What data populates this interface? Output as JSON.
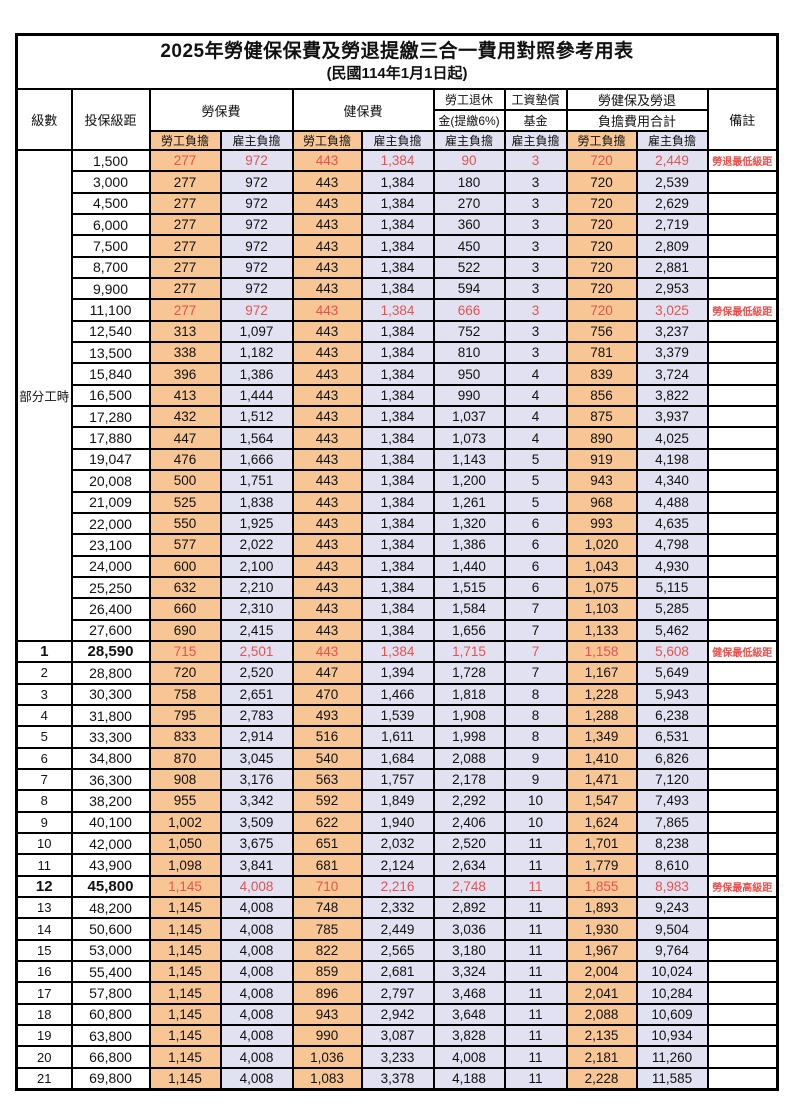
{
  "title": "2025年勞健保保費及勞退提繳三合一費用對照參考用表",
  "subtitle": "(民國114年1月1日起)",
  "colors": {
    "employee_share_bg": "#F8C694",
    "employer_share_bg": "#E1E1F1",
    "highlight_red": "#E8524E"
  },
  "header": {
    "level": "級數",
    "bracket": "投保級距",
    "labor_insurance": "勞保費",
    "health_insurance": "健保費",
    "pension_line1": "勞工退休",
    "pension_line2": "金(提繳6%)",
    "wage_fund_line1": "工資墊償",
    "wage_fund_line2": "基金",
    "total_line1": "勞健保及勞退",
    "total_line2": "負擔費用合計",
    "employee_share": "勞工負擔",
    "employer_share": "雇主負擔",
    "remark": "備註"
  },
  "part_time_label": "部分工時",
  "part_time_rowspan": 23,
  "rows": [
    {
      "level": "",
      "bracket": "1,500",
      "labor_emp": "277",
      "labor_er": "972",
      "health_emp": "443",
      "health_er": "1,384",
      "pension_er": "90",
      "fund_er": "3",
      "total_emp": "720",
      "total_er": "2,449",
      "remark": "勞退最低級距",
      "highlight": true
    },
    {
      "level": "",
      "bracket": "3,000",
      "labor_emp": "277",
      "labor_er": "972",
      "health_emp": "443",
      "health_er": "1,384",
      "pension_er": "180",
      "fund_er": "3",
      "total_emp": "720",
      "total_er": "2,539",
      "remark": ""
    },
    {
      "level": "",
      "bracket": "4,500",
      "labor_emp": "277",
      "labor_er": "972",
      "health_emp": "443",
      "health_er": "1,384",
      "pension_er": "270",
      "fund_er": "3",
      "total_emp": "720",
      "total_er": "2,629",
      "remark": ""
    },
    {
      "level": "",
      "bracket": "6,000",
      "labor_emp": "277",
      "labor_er": "972",
      "health_emp": "443",
      "health_er": "1,384",
      "pension_er": "360",
      "fund_er": "3",
      "total_emp": "720",
      "total_er": "2,719",
      "remark": ""
    },
    {
      "level": "",
      "bracket": "7,500",
      "labor_emp": "277",
      "labor_er": "972",
      "health_emp": "443",
      "health_er": "1,384",
      "pension_er": "450",
      "fund_er": "3",
      "total_emp": "720",
      "total_er": "2,809",
      "remark": ""
    },
    {
      "level": "",
      "bracket": "8,700",
      "labor_emp": "277",
      "labor_er": "972",
      "health_emp": "443",
      "health_er": "1,384",
      "pension_er": "522",
      "fund_er": "3",
      "total_emp": "720",
      "total_er": "2,881",
      "remark": ""
    },
    {
      "level": "",
      "bracket": "9,900",
      "labor_emp": "277",
      "labor_er": "972",
      "health_emp": "443",
      "health_er": "1,384",
      "pension_er": "594",
      "fund_er": "3",
      "total_emp": "720",
      "total_er": "2,953",
      "remark": ""
    },
    {
      "level": "",
      "bracket": "11,100",
      "labor_emp": "277",
      "labor_er": "972",
      "health_emp": "443",
      "health_er": "1,384",
      "pension_er": "666",
      "fund_er": "3",
      "total_emp": "720",
      "total_er": "3,025",
      "remark": "勞保最低級距",
      "highlight": true
    },
    {
      "level": "",
      "bracket": "12,540",
      "labor_emp": "313",
      "labor_er": "1,097",
      "health_emp": "443",
      "health_er": "1,384",
      "pension_er": "752",
      "fund_er": "3",
      "total_emp": "756",
      "total_er": "3,237",
      "remark": ""
    },
    {
      "level": "",
      "bracket": "13,500",
      "labor_emp": "338",
      "labor_er": "1,182",
      "health_emp": "443",
      "health_er": "1,384",
      "pension_er": "810",
      "fund_er": "3",
      "total_emp": "781",
      "total_er": "3,379",
      "remark": ""
    },
    {
      "level": "",
      "bracket": "15,840",
      "labor_emp": "396",
      "labor_er": "1,386",
      "health_emp": "443",
      "health_er": "1,384",
      "pension_er": "950",
      "fund_er": "4",
      "total_emp": "839",
      "total_er": "3,724",
      "remark": ""
    },
    {
      "level": "",
      "bracket": "16,500",
      "labor_emp": "413",
      "labor_er": "1,444",
      "health_emp": "443",
      "health_er": "1,384",
      "pension_er": "990",
      "fund_er": "4",
      "total_emp": "856",
      "total_er": "3,822",
      "remark": ""
    },
    {
      "level": "",
      "bracket": "17,280",
      "labor_emp": "432",
      "labor_er": "1,512",
      "health_emp": "443",
      "health_er": "1,384",
      "pension_er": "1,037",
      "fund_er": "4",
      "total_emp": "875",
      "total_er": "3,937",
      "remark": ""
    },
    {
      "level": "",
      "bracket": "17,880",
      "labor_emp": "447",
      "labor_er": "1,564",
      "health_emp": "443",
      "health_er": "1,384",
      "pension_er": "1,073",
      "fund_er": "4",
      "total_emp": "890",
      "total_er": "4,025",
      "remark": ""
    },
    {
      "level": "",
      "bracket": "19,047",
      "labor_emp": "476",
      "labor_er": "1,666",
      "health_emp": "443",
      "health_er": "1,384",
      "pension_er": "1,143",
      "fund_er": "5",
      "total_emp": "919",
      "total_er": "4,198",
      "remark": ""
    },
    {
      "level": "",
      "bracket": "20,008",
      "labor_emp": "500",
      "labor_er": "1,751",
      "health_emp": "443",
      "health_er": "1,384",
      "pension_er": "1,200",
      "fund_er": "5",
      "total_emp": "943",
      "total_er": "4,340",
      "remark": ""
    },
    {
      "level": "",
      "bracket": "21,009",
      "labor_emp": "525",
      "labor_er": "1,838",
      "health_emp": "443",
      "health_er": "1,384",
      "pension_er": "1,261",
      "fund_er": "5",
      "total_emp": "968",
      "total_er": "4,488",
      "remark": ""
    },
    {
      "level": "",
      "bracket": "22,000",
      "labor_emp": "550",
      "labor_er": "1,925",
      "health_emp": "443",
      "health_er": "1,384",
      "pension_er": "1,320",
      "fund_er": "6",
      "total_emp": "993",
      "total_er": "4,635",
      "remark": ""
    },
    {
      "level": "",
      "bracket": "23,100",
      "labor_emp": "577",
      "labor_er": "2,022",
      "health_emp": "443",
      "health_er": "1,384",
      "pension_er": "1,386",
      "fund_er": "6",
      "total_emp": "1,020",
      "total_er": "4,798",
      "remark": ""
    },
    {
      "level": "",
      "bracket": "24,000",
      "labor_emp": "600",
      "labor_er": "2,100",
      "health_emp": "443",
      "health_er": "1,384",
      "pension_er": "1,440",
      "fund_er": "6",
      "total_emp": "1,043",
      "total_er": "4,930",
      "remark": ""
    },
    {
      "level": "",
      "bracket": "25,250",
      "labor_emp": "632",
      "labor_er": "2,210",
      "health_emp": "443",
      "health_er": "1,384",
      "pension_er": "1,515",
      "fund_er": "6",
      "total_emp": "1,075",
      "total_er": "5,115",
      "remark": ""
    },
    {
      "level": "",
      "bracket": "26,400",
      "labor_emp": "660",
      "labor_er": "2,310",
      "health_emp": "443",
      "health_er": "1,384",
      "pension_er": "1,584",
      "fund_er": "7",
      "total_emp": "1,103",
      "total_er": "5,285",
      "remark": ""
    },
    {
      "level": "",
      "bracket": "27,600",
      "labor_emp": "690",
      "labor_er": "2,415",
      "health_emp": "443",
      "health_er": "1,384",
      "pension_er": "1,656",
      "fund_er": "7",
      "total_emp": "1,133",
      "total_er": "5,462",
      "remark": ""
    },
    {
      "level": "1",
      "bracket": "28,590",
      "labor_emp": "715",
      "labor_er": "2,501",
      "health_emp": "443",
      "health_er": "1,384",
      "pension_er": "1,715",
      "fund_er": "7",
      "total_emp": "1,158",
      "total_er": "5,608",
      "remark": "健保最低級距",
      "highlight": true,
      "emphasis": true
    },
    {
      "level": "2",
      "bracket": "28,800",
      "labor_emp": "720",
      "labor_er": "2,520",
      "health_emp": "447",
      "health_er": "1,394",
      "pension_er": "1,728",
      "fund_er": "7",
      "total_emp": "1,167",
      "total_er": "5,649",
      "remark": ""
    },
    {
      "level": "3",
      "bracket": "30,300",
      "labor_emp": "758",
      "labor_er": "2,651",
      "health_emp": "470",
      "health_er": "1,466",
      "pension_er": "1,818",
      "fund_er": "8",
      "total_emp": "1,228",
      "total_er": "5,943",
      "remark": ""
    },
    {
      "level": "4",
      "bracket": "31,800",
      "labor_emp": "795",
      "labor_er": "2,783",
      "health_emp": "493",
      "health_er": "1,539",
      "pension_er": "1,908",
      "fund_er": "8",
      "total_emp": "1,288",
      "total_er": "6,238",
      "remark": ""
    },
    {
      "level": "5",
      "bracket": "33,300",
      "labor_emp": "833",
      "labor_er": "2,914",
      "health_emp": "516",
      "health_er": "1,611",
      "pension_er": "1,998",
      "fund_er": "8",
      "total_emp": "1,349",
      "total_er": "6,531",
      "remark": ""
    },
    {
      "level": "6",
      "bracket": "34,800",
      "labor_emp": "870",
      "labor_er": "3,045",
      "health_emp": "540",
      "health_er": "1,684",
      "pension_er": "2,088",
      "fund_er": "9",
      "total_emp": "1,410",
      "total_er": "6,826",
      "remark": ""
    },
    {
      "level": "7",
      "bracket": "36,300",
      "labor_emp": "908",
      "labor_er": "3,176",
      "health_emp": "563",
      "health_er": "1,757",
      "pension_er": "2,178",
      "fund_er": "9",
      "total_emp": "1,471",
      "total_er": "7,120",
      "remark": ""
    },
    {
      "level": "8",
      "bracket": "38,200",
      "labor_emp": "955",
      "labor_er": "3,342",
      "health_emp": "592",
      "health_er": "1,849",
      "pension_er": "2,292",
      "fund_er": "10",
      "total_emp": "1,547",
      "total_er": "7,493",
      "remark": ""
    },
    {
      "level": "9",
      "bracket": "40,100",
      "labor_emp": "1,002",
      "labor_er": "3,509",
      "health_emp": "622",
      "health_er": "1,940",
      "pension_er": "2,406",
      "fund_er": "10",
      "total_emp": "1,624",
      "total_er": "7,865",
      "remark": ""
    },
    {
      "level": "10",
      "bracket": "42,000",
      "labor_emp": "1,050",
      "labor_er": "3,675",
      "health_emp": "651",
      "health_er": "2,032",
      "pension_er": "2,520",
      "fund_er": "11",
      "total_emp": "1,701",
      "total_er": "8,238",
      "remark": ""
    },
    {
      "level": "11",
      "bracket": "43,900",
      "labor_emp": "1,098",
      "labor_er": "3,841",
      "health_emp": "681",
      "health_er": "2,124",
      "pension_er": "2,634",
      "fund_er": "11",
      "total_emp": "1,779",
      "total_er": "8,610",
      "remark": ""
    },
    {
      "level": "12",
      "bracket": "45,800",
      "labor_emp": "1,145",
      "labor_er": "4,008",
      "health_emp": "710",
      "health_er": "2,216",
      "pension_er": "2,748",
      "fund_er": "11",
      "total_emp": "1,855",
      "total_er": "8,983",
      "remark": "勞保最高級距",
      "highlight": true,
      "emphasis": true
    },
    {
      "level": "13",
      "bracket": "48,200",
      "labor_emp": "1,145",
      "labor_er": "4,008",
      "health_emp": "748",
      "health_er": "2,332",
      "pension_er": "2,892",
      "fund_er": "11",
      "total_emp": "1,893",
      "total_er": "9,243",
      "remark": ""
    },
    {
      "level": "14",
      "bracket": "50,600",
      "labor_emp": "1,145",
      "labor_er": "4,008",
      "health_emp": "785",
      "health_er": "2,449",
      "pension_er": "3,036",
      "fund_er": "11",
      "total_emp": "1,930",
      "total_er": "9,504",
      "remark": ""
    },
    {
      "level": "15",
      "bracket": "53,000",
      "labor_emp": "1,145",
      "labor_er": "4,008",
      "health_emp": "822",
      "health_er": "2,565",
      "pension_er": "3,180",
      "fund_er": "11",
      "total_emp": "1,967",
      "total_er": "9,764",
      "remark": ""
    },
    {
      "level": "16",
      "bracket": "55,400",
      "labor_emp": "1,145",
      "labor_er": "4,008",
      "health_emp": "859",
      "health_er": "2,681",
      "pension_er": "3,324",
      "fund_er": "11",
      "total_emp": "2,004",
      "total_er": "10,024",
      "remark": ""
    },
    {
      "level": "17",
      "bracket": "57,800",
      "labor_emp": "1,145",
      "labor_er": "4,008",
      "health_emp": "896",
      "health_er": "2,797",
      "pension_er": "3,468",
      "fund_er": "11",
      "total_emp": "2,041",
      "total_er": "10,284",
      "remark": ""
    },
    {
      "level": "18",
      "bracket": "60,800",
      "labor_emp": "1,145",
      "labor_er": "4,008",
      "health_emp": "943",
      "health_er": "2,942",
      "pension_er": "3,648",
      "fund_er": "11",
      "total_emp": "2,088",
      "total_er": "10,609",
      "remark": ""
    },
    {
      "level": "19",
      "bracket": "63,800",
      "labor_emp": "1,145",
      "labor_er": "4,008",
      "health_emp": "990",
      "health_er": "3,087",
      "pension_er": "3,828",
      "fund_er": "11",
      "total_emp": "2,135",
      "total_er": "10,934",
      "remark": ""
    },
    {
      "level": "20",
      "bracket": "66,800",
      "labor_emp": "1,145",
      "labor_er": "4,008",
      "health_emp": "1,036",
      "health_er": "3,233",
      "pension_er": "4,008",
      "fund_er": "11",
      "total_emp": "2,181",
      "total_er": "11,260",
      "remark": ""
    },
    {
      "level": "21",
      "bracket": "69,800",
      "labor_emp": "1,145",
      "labor_er": "4,008",
      "health_emp": "1,083",
      "health_er": "3,378",
      "pension_er": "4,188",
      "fund_er": "11",
      "total_emp": "2,228",
      "total_er": "11,585",
      "remark": ""
    }
  ]
}
